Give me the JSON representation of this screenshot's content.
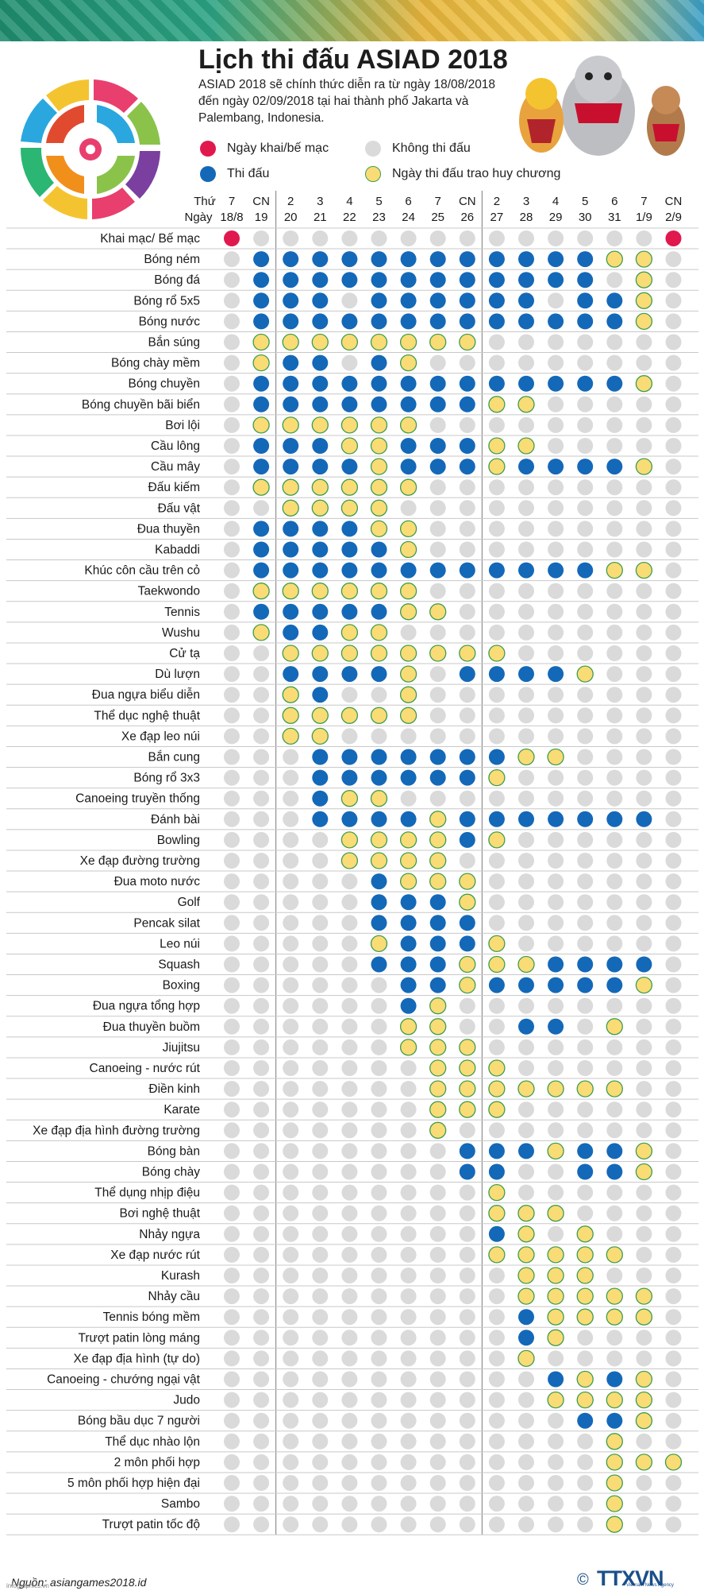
{
  "header": {
    "title": "Lịch thi đấu ASIAD 2018",
    "intro": "ASIAD 2018 sẽ chính thức diễn ra từ ngày 18/08/2018 đến ngày 02/09/2018  tại hai thành phố Jakarta và Palembang, Indonesia."
  },
  "legend": {
    "opening_closing": "Ngày khai/bế mạc",
    "competition": "Thi đấu",
    "no_competition": "Không thi đấu",
    "medal": "Ngày thi đấu trao huy chương"
  },
  "colors": {
    "opening_closing": "#e0184e",
    "competition": "#1468b8",
    "no_competition": "#dadada",
    "medal": "#f9dc75",
    "medal_border": "#3e9c4e",
    "row_line": "#c8c8c8",
    "divider": "#7a7a7a"
  },
  "chart_data": {
    "type": "table",
    "title": "Lịch thi đấu ASIAD 2018",
    "header_labels": [
      "Thứ",
      "Ngày"
    ],
    "day_labels": [
      [
        "7",
        "18/8"
      ],
      [
        "CN",
        "19"
      ],
      [
        "2",
        "20"
      ],
      [
        "3",
        "21"
      ],
      [
        "4",
        "22"
      ],
      [
        "5",
        "23"
      ],
      [
        "6",
        "24"
      ],
      [
        "7",
        "25"
      ],
      [
        "CN",
        "26"
      ],
      [
        "2",
        "27"
      ],
      [
        "3",
        "28"
      ],
      [
        "4",
        "29"
      ],
      [
        "5",
        "30"
      ],
      [
        "6",
        "31"
      ],
      [
        "7",
        "1/9"
      ],
      [
        "CN",
        "2/9"
      ]
    ],
    "status_codes": {
      "0": "Không thi đấu",
      "1": "Thi đấu",
      "2": "Ngày thi đấu trao huy chương",
      "3": "Ngày khai/bế mạc"
    },
    "sports": [
      {
        "name": "Khai mạc/ Bế mạc",
        "days": "3000000000000003"
      },
      {
        "name": "Bóng ném",
        "days": "0111111111111220"
      },
      {
        "name": "Bóng đá",
        "days": "0111111111111020"
      },
      {
        "name": "Bóng rổ 5x5",
        "days": "0111011111101120"
      },
      {
        "name": "Bóng nước",
        "days": "0111111111111120"
      },
      {
        "name": "Bắn súng",
        "days": "0222222220000000"
      },
      {
        "name": "Bóng chày mềm",
        "days": "0211012000000000"
      },
      {
        "name": "Bóng chuyền",
        "days": "0111111111111120"
      },
      {
        "name": "Bóng chuyền bãi biển",
        "days": "0111111112200000"
      },
      {
        "name": "Bơi lội",
        "days": "0222222000000000"
      },
      {
        "name": "Cầu lông",
        "days": "0111221112200000"
      },
      {
        "name": "Cầu mây",
        "days": "0111121112111120"
      },
      {
        "name": "Đấu kiếm",
        "days": "0222222000000000"
      },
      {
        "name": "Đấu vật",
        "days": "0022220000000000"
      },
      {
        "name": "Đua thuyền",
        "days": "0111122000000000"
      },
      {
        "name": "Kabaddi",
        "days": "0111112000000000"
      },
      {
        "name": "Khúc côn cầu trên cỏ",
        "days": "0111111111111220"
      },
      {
        "name": "Taekwondo",
        "days": "0222222000000000"
      },
      {
        "name": "Tennis",
        "days": "0111112200000000"
      },
      {
        "name": "Wushu",
        "days": "0211220000000000"
      },
      {
        "name": "Cử tạ",
        "days": "0022222222000000"
      },
      {
        "name": "Dù lượn",
        "days": "0011112011112000"
      },
      {
        "name": "Đua ngựa biểu diễn",
        "days": "0021002000000000"
      },
      {
        "name": "Thể dục nghệ thuật",
        "days": "0022222000000000"
      },
      {
        "name": "Xe đạp leo núi",
        "days": "0022000000000000"
      },
      {
        "name": "Bắn cung",
        "days": "0001111111220000"
      },
      {
        "name": "Bóng rổ 3x3",
        "days": "0001111112000000"
      },
      {
        "name": "Canoeing truyền thống",
        "days": "0001220000000000"
      },
      {
        "name": "Đánh bài",
        "days": "0001111211111110"
      },
      {
        "name": "Bowling",
        "days": "0000222212000000"
      },
      {
        "name": "Xe đạp đường trường",
        "days": "0000222200000000"
      },
      {
        "name": "Đua moto nước",
        "days": "0000012220000000"
      },
      {
        "name": "Golf",
        "days": "0000011120000000"
      },
      {
        "name": "Pencak silat",
        "days": "0000011110000000"
      },
      {
        "name": "Leo núi",
        "days": "0000021112000000"
      },
      {
        "name": "Squash",
        "days": "0000011122211110"
      },
      {
        "name": "Boxing",
        "days": "0000001121111120"
      },
      {
        "name": "Đua ngựa tổng hợp",
        "days": "0000001200000000"
      },
      {
        "name": "Đua thuyền buồm",
        "days": "0000002200110200"
      },
      {
        "name": "Jiujitsu",
        "days": "0000002220000000"
      },
      {
        "name": "Canoeing - nước rút",
        "days": "0000000222000000"
      },
      {
        "name": "Điền kinh",
        "days": "0000000222222200"
      },
      {
        "name": "Karate",
        "days": "0000000222000000"
      },
      {
        "name": "Xe đạp địa hình đường trường",
        "days": "0000000200000000"
      },
      {
        "name": "Bóng bàn",
        "days": "0000000011121120"
      },
      {
        "name": "Bóng chày",
        "days": "0000000011001120"
      },
      {
        "name": "Thể dụng nhịp điệu",
        "days": "0000000002000000"
      },
      {
        "name": "Bơi nghệ thuật",
        "days": "0000000002220000"
      },
      {
        "name": "Nhảy ngựa",
        "days": "0000000001202000"
      },
      {
        "name": "Xe đạp nước rút",
        "days": "0000000002222200"
      },
      {
        "name": "Kurash",
        "days": "0000000000222000"
      },
      {
        "name": "Nhảy cầu",
        "days": "0000000000222220"
      },
      {
        "name": "Tennis bóng mềm",
        "days": "0000000000122220"
      },
      {
        "name": "Trượt patin lòng máng",
        "days": "0000000000120000"
      },
      {
        "name": "Xe đạp địa hình (tự do)",
        "days": "0000000000200000"
      },
      {
        "name": "Canoeing - chướng ngại vật",
        "days": "0000000000012120"
      },
      {
        "name": "Judo",
        "days": "0000000000022220"
      },
      {
        "name": "Bóng bầu dục 7 người",
        "days": "0000000000001120"
      },
      {
        "name": "Thể dục nhào lộn",
        "days": "0000000000000200"
      },
      {
        "name": "2 môn phối hợp",
        "days": "0000000000000222"
      },
      {
        "name": "5 môn phối hợp hiện đại",
        "days": "0000000000000200"
      },
      {
        "name": "Sambo",
        "days": "0000000000000200"
      },
      {
        "name": "Trượt patin tốc độ",
        "days": "0000000000000200"
      }
    ]
  },
  "footer": {
    "source": "Nguồn: asiangames2018.id",
    "copyright": "©",
    "agency": "TTXVN",
    "agency_subtitle": "Vietnam News Agency",
    "site": "infographics.vn"
  }
}
